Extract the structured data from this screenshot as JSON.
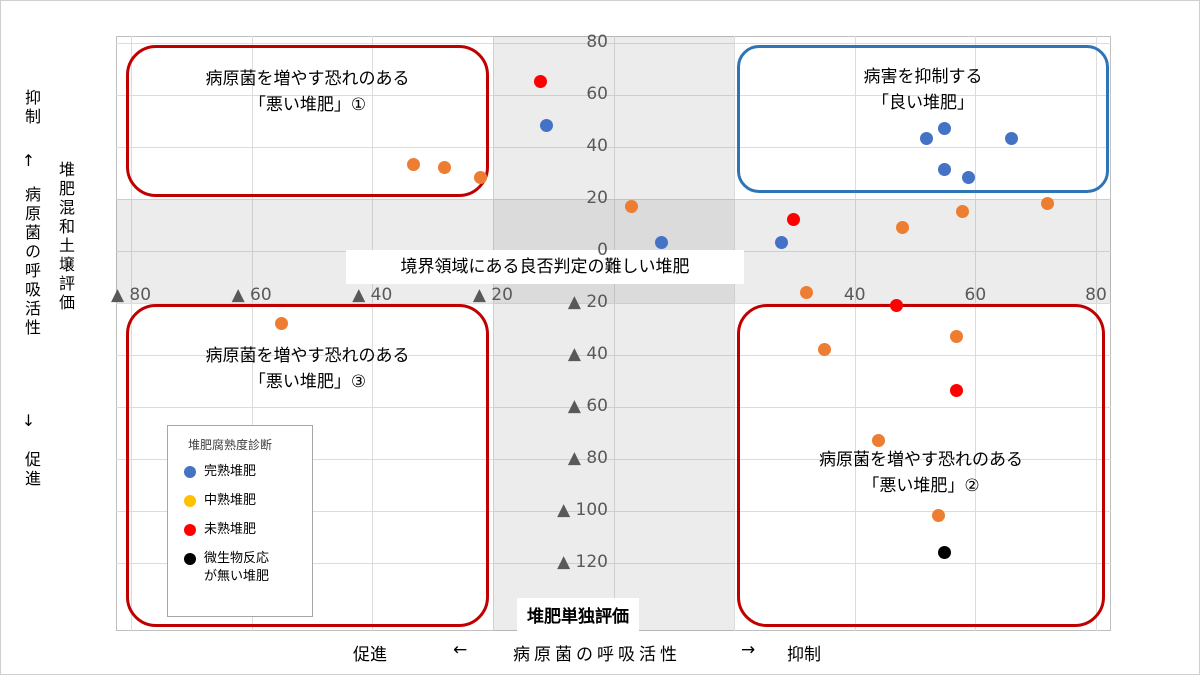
{
  "chart_data": {
    "type": "scatter",
    "grid": true,
    "x_axis": {
      "min": -80,
      "max": 80,
      "step": 20,
      "ticks": [
        -80,
        -60,
        -40,
        -20,
        0,
        20,
        40,
        60,
        80
      ],
      "tick_labels": [
        "▲ 80",
        "▲ 60",
        "▲ 40",
        "▲ 20",
        "",
        "",
        "40",
        "60",
        "80"
      ]
    },
    "y_axis": {
      "min": -120,
      "max": 80,
      "step": 20,
      "ticks": [
        80,
        60,
        40,
        20,
        0,
        -20,
        -40,
        -60,
        -80,
        -100,
        -120
      ],
      "tick_labels": [
        "80",
        "60",
        "40",
        "20",
        "0",
        "▲ 20",
        "▲ 40",
        "▲ 60",
        "▲ 80",
        "▲ 100",
        "▲ 120"
      ]
    },
    "boundary_band": {
      "x": [
        -20,
        20
      ],
      "y": [
        -20,
        20
      ]
    },
    "series": [
      {
        "name": "完熟堆肥",
        "color": "#4472C4",
        "points": [
          [
            -11,
            48
          ],
          [
            8,
            3
          ],
          [
            28,
            3
          ],
          [
            52,
            43
          ],
          [
            55,
            47
          ],
          [
            55,
            31
          ],
          [
            59,
            28
          ],
          [
            66,
            43
          ]
        ]
      },
      {
        "name": "中熟堆肥",
        "color": "#ED7D31",
        "legend_color": "#FFC000",
        "points": [
          [
            -55,
            -28
          ],
          [
            -33,
            33
          ],
          [
            -28,
            32
          ],
          [
            -22,
            28
          ],
          [
            3,
            17
          ],
          [
            32,
            -16
          ],
          [
            35,
            -38
          ],
          [
            44,
            -73
          ],
          [
            48,
            9
          ],
          [
            54,
            -102
          ],
          [
            57,
            -33
          ],
          [
            58,
            15
          ],
          [
            72,
            18
          ]
        ]
      },
      {
        "name": "未熟堆肥",
        "color": "#FF0000",
        "points": [
          [
            -12,
            65
          ],
          [
            30,
            12
          ],
          [
            47,
            -21
          ],
          [
            57,
            -54
          ]
        ]
      },
      {
        "name": "微生物反応が無い堆肥",
        "color": "#000000",
        "points": [
          [
            55,
            -116
          ]
        ]
      }
    ]
  },
  "annotations": {
    "top_left_box": {
      "line1": "病原菌を増やす恐れのある",
      "line2": "「悪い堆肥」①",
      "border_color": "#C00000"
    },
    "top_right_box": {
      "line1": "病害を抑制する",
      "line2": "「良い堆肥」",
      "border_color": "#2E75B6"
    },
    "bottom_left_box": {
      "line1": "病原菌を増やす恐れのある",
      "line2": "「悪い堆肥」③",
      "border_color": "#C00000"
    },
    "bottom_right_box": {
      "line1": "病原菌を増やす恐れのある",
      "line2": "「悪い堆肥」②",
      "border_color": "#C00000"
    },
    "boundary_label": "境界領域にある良否判定の難しい堆肥"
  },
  "left_axis": {
    "outer": [
      "抑制",
      "↑",
      "病原菌の呼吸活性",
      "↓",
      "促進"
    ],
    "inner": "堆肥混和土壌評価"
  },
  "bottom_axis": {
    "box_label": "堆肥単独評価",
    "left_caption": "促進",
    "left_arrow": "←",
    "center_label": "病原菌の呼吸活性",
    "right_arrow": "→",
    "right_caption": "抑制"
  },
  "legend": {
    "title": "堆肥腐熟度診断",
    "items": [
      {
        "label": "完熟堆肥",
        "color": "#4472C4"
      },
      {
        "label": "中熟堆肥",
        "color": "#FFC000"
      },
      {
        "label": "未熟堆肥",
        "color": "#FF0000"
      },
      {
        "label": "微生物反応\nが無い堆肥",
        "color": "#000000"
      }
    ]
  }
}
